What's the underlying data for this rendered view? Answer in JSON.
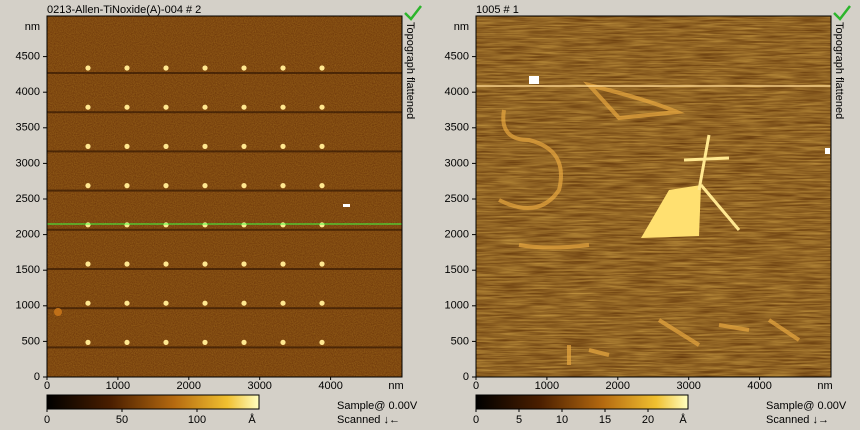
{
  "panels": [
    {
      "title": "0213-Allen-TiNoxide(A)-004 # 2",
      "side_label": "Topograph flattened",
      "y_unit": "nm",
      "yticks": [
        "0",
        "500",
        "1000",
        "1500",
        "2000",
        "2500",
        "3000",
        "3500",
        "4000",
        "4500"
      ],
      "xticks": [
        "0",
        "1000",
        "2000",
        "3000",
        "4000"
      ],
      "x_unit": "nm",
      "colorbar_ticks": [
        "0",
        "50",
        "100"
      ],
      "colorbar_unit": "Å",
      "bias": "Sample@ 0.00V",
      "scan": "Scanned ↓←"
    },
    {
      "title": "1005 # 1",
      "side_label": "Topograph flattened",
      "y_unit": "nm",
      "yticks": [
        "0",
        "500",
        "1000",
        "1500",
        "2000",
        "2500",
        "3000",
        "3500",
        "4000",
        "4500"
      ],
      "xticks": [
        "0",
        "1000",
        "2000",
        "3000",
        "4000"
      ],
      "x_unit": "nm",
      "colorbar_ticks": [
        "0",
        "5",
        "10",
        "15",
        "20"
      ],
      "colorbar_unit": "Å",
      "bias": "Sample@ 0.00V",
      "scan": "Scanned ↓→"
    }
  ]
}
